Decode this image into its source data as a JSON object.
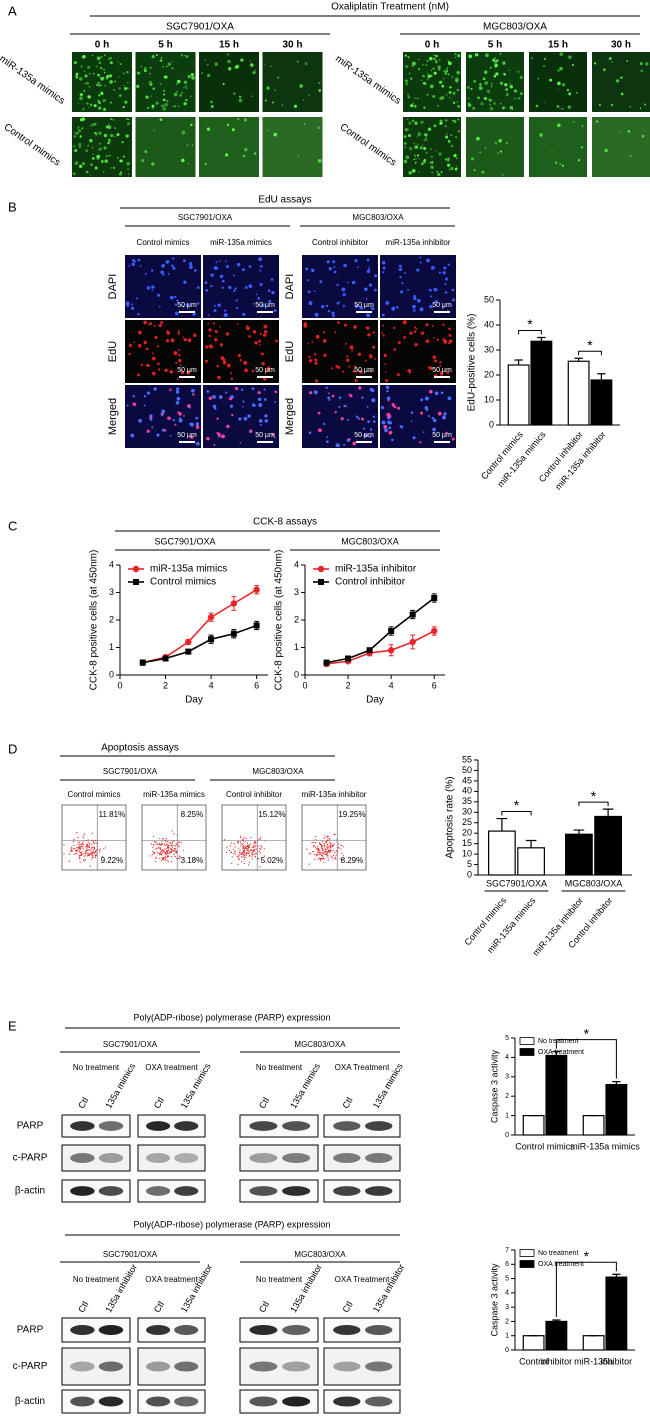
{
  "panel_a": {
    "letter": "A",
    "title": "Oxaliplatin Treatment (nM)",
    "cell_lines": [
      "SGC7901/OXA",
      "MGC803/OXA"
    ],
    "times": [
      "0 h",
      "5 h",
      "15 h",
      "30 h"
    ],
    "rows": [
      "miR-135a mimics",
      "Control mimics"
    ]
  },
  "panel_b": {
    "letter": "B",
    "title": "EdU assays",
    "cell_lines": [
      "SGC7901/OXA",
      "MGC803/OXA"
    ],
    "columns": [
      "Control mimics",
      "miR-135a mimics",
      "Control inhibitor",
      "miR-135a inhibitor"
    ],
    "rows": [
      "DAPI",
      "EdU",
      "Merged"
    ],
    "scale_bar": "50 μm"
  },
  "panel_c": {
    "letter": "C",
    "title": "CCK-8 assays",
    "cell_lines": [
      "SGC7901/OXA",
      "MGC803/OXA"
    ]
  },
  "panel_d": {
    "letter": "D",
    "title": "Apoptosis assays",
    "cell_lines": [
      "SGC7901/OXA",
      "MGC803/OXA"
    ],
    "columns": [
      "Control mimics",
      "miR-135a mimics",
      "Control inhibitor",
      "miR-135a inhibitor"
    ],
    "quadrants": [
      {
        "upper": "11.81%",
        "lower": "9.22%"
      },
      {
        "upper": "8.25%",
        "lower": "3.18%"
      },
      {
        "upper": "15.12%",
        "lower": "5.02%"
      },
      {
        "upper": "19.25%",
        "lower": "8.29%"
      }
    ]
  },
  "panel_e": {
    "letter": "E",
    "blots": [
      {
        "title": "Poly(ADP-ribose) polymerase (PARP) expression",
        "cell_lines": [
          "SGC7901/OXA",
          "MGC803/OXA"
        ],
        "treatments": [
          "No treatment",
          "OXA treatment",
          "No treatment",
          "OXA Treatment"
        ],
        "lanes": [
          "Ctl",
          "135a mimics"
        ],
        "proteins": [
          "PARP",
          "c-PARP",
          "β-actin"
        ]
      },
      {
        "title": "Poly(ADP-ribose) polymerase (PARP) expression",
        "cell_lines": [
          "SGC7901/OXA",
          "MGC803/OXA"
        ],
        "treatments": [
          "No treatment",
          "OXA treatment",
          "No treatment",
          "OXA Treatment"
        ],
        "lanes": [
          "Ctl",
          "135a inhibitor"
        ],
        "proteins": [
          "PARP",
          "c-PARP",
          "β-actin"
        ]
      }
    ]
  },
  "chart_data": [
    {
      "type": "bar",
      "ylabel": "EdU-positive cells (%)",
      "categories": [
        "Control mimics",
        "miR-135a mimics",
        "Control inhibitor",
        "miR-135a inhibitor"
      ],
      "values": [
        24,
        33.5,
        25.5,
        18
      ],
      "errors": [
        2,
        1.5,
        1.2,
        2.5
      ],
      "colors": [
        "#ffffff",
        "#000000",
        "#ffffff",
        "#000000"
      ],
      "ylim": [
        0,
        50
      ],
      "yticks": [
        0,
        10,
        20,
        30,
        40,
        50
      ],
      "annotations": [
        "*",
        "*"
      ]
    },
    {
      "type": "line",
      "xlabel": "Day",
      "ylabel": "CCK-8 positive cells (at 450nm)",
      "x": [
        1,
        2,
        3,
        4,
        5,
        6
      ],
      "series": [
        {
          "name": "miR-135a mimics",
          "color": "#e8262a",
          "marker": "circle",
          "values": [
            0.45,
            0.65,
            1.2,
            2.1,
            2.6,
            3.1
          ],
          "errors": [
            0.1,
            0.06,
            0.08,
            0.15,
            0.25,
            0.15
          ]
        },
        {
          "name": "Control mimics",
          "color": "#000000",
          "marker": "square",
          "values": [
            0.45,
            0.6,
            0.85,
            1.3,
            1.5,
            1.8
          ],
          "errors": [
            0.08,
            0.05,
            0.08,
            0.15,
            0.15,
            0.15
          ]
        }
      ],
      "xlim": [
        0,
        6.5
      ],
      "ylim": [
        0,
        4
      ],
      "xticks": [
        0,
        2,
        4,
        6
      ],
      "yticks": [
        0,
        1,
        2,
        3,
        4
      ],
      "legend": "upper left"
    },
    {
      "type": "line",
      "xlabel": "Day",
      "ylabel": "CCK-8 positive cells (at 450nm)",
      "x": [
        1,
        2,
        3,
        4,
        5,
        6
      ],
      "series": [
        {
          "name": "miR-135a inhibitor",
          "color": "#e8262a",
          "marker": "circle",
          "values": [
            0.4,
            0.5,
            0.8,
            0.9,
            1.2,
            1.6
          ],
          "errors": [
            0.08,
            0.05,
            0.1,
            0.2,
            0.25,
            0.15
          ]
        },
        {
          "name": "Control inhibitor",
          "color": "#000000",
          "marker": "square",
          "values": [
            0.45,
            0.6,
            0.9,
            1.6,
            2.2,
            2.8
          ],
          "errors": [
            0.08,
            0.06,
            0.08,
            0.15,
            0.15,
            0.15
          ]
        }
      ],
      "xlim": [
        0,
        6.5
      ],
      "ylim": [
        0,
        4
      ],
      "xticks": [
        0,
        2,
        4,
        6
      ],
      "yticks": [
        0,
        1,
        2,
        3,
        4
      ],
      "legend": "upper left"
    },
    {
      "type": "bar",
      "ylabel": "Apoptosis rate (%)",
      "groups": [
        "SGC7901/OXA",
        "MGC803/OXA"
      ],
      "categories": [
        "Control mimics",
        "miR-135a mimics",
        "miR-135a inhibitor",
        "Control inhibitor"
      ],
      "values": [
        21,
        13,
        19.5,
        28
      ],
      "errors": [
        6,
        3.5,
        2,
        3.5
      ],
      "colors": [
        "#ffffff",
        "#ffffff",
        "#000000",
        "#000000"
      ],
      "ylim": [
        0,
        55
      ],
      "yticks": [
        0,
        5,
        10,
        15,
        20,
        25,
        30,
        35,
        40,
        45,
        50,
        55
      ],
      "annotations": [
        "*",
        "*"
      ]
    },
    {
      "type": "bar",
      "ylabel": "Caspase 3 activity",
      "categories": [
        "Control mimics",
        "miR-135a mimics"
      ],
      "series": [
        {
          "name": "No treatment",
          "color": "#ffffff",
          "values": [
            1,
            1
          ],
          "errors": [
            0,
            0
          ]
        },
        {
          "name": "OXA treatment",
          "color": "#000000",
          "values": [
            4.1,
            2.6
          ],
          "errors": [
            0.2,
            0.15
          ]
        }
      ],
      "ylim": [
        0,
        5
      ],
      "yticks": [
        0,
        1,
        2,
        3,
        4,
        5
      ],
      "annotations": [
        "*"
      ]
    },
    {
      "type": "bar",
      "ylabel": "Caspase 3 activity",
      "categories": [
        [
          "Control",
          "inhibitor"
        ],
        [
          "miR-135a",
          "inhibitor"
        ]
      ],
      "series": [
        {
          "name": "No treatment",
          "color": "#ffffff",
          "values": [
            1,
            1
          ],
          "errors": [
            0,
            0
          ]
        },
        {
          "name": "OXA treatment",
          "color": "#000000",
          "values": [
            2,
            5.1
          ],
          "errors": [
            0.1,
            0.2
          ]
        }
      ],
      "ylim": [
        0,
        7
      ],
      "yticks": [
        0,
        1,
        2,
        3,
        4,
        5,
        6,
        7
      ],
      "annotations": [
        "*"
      ]
    }
  ]
}
